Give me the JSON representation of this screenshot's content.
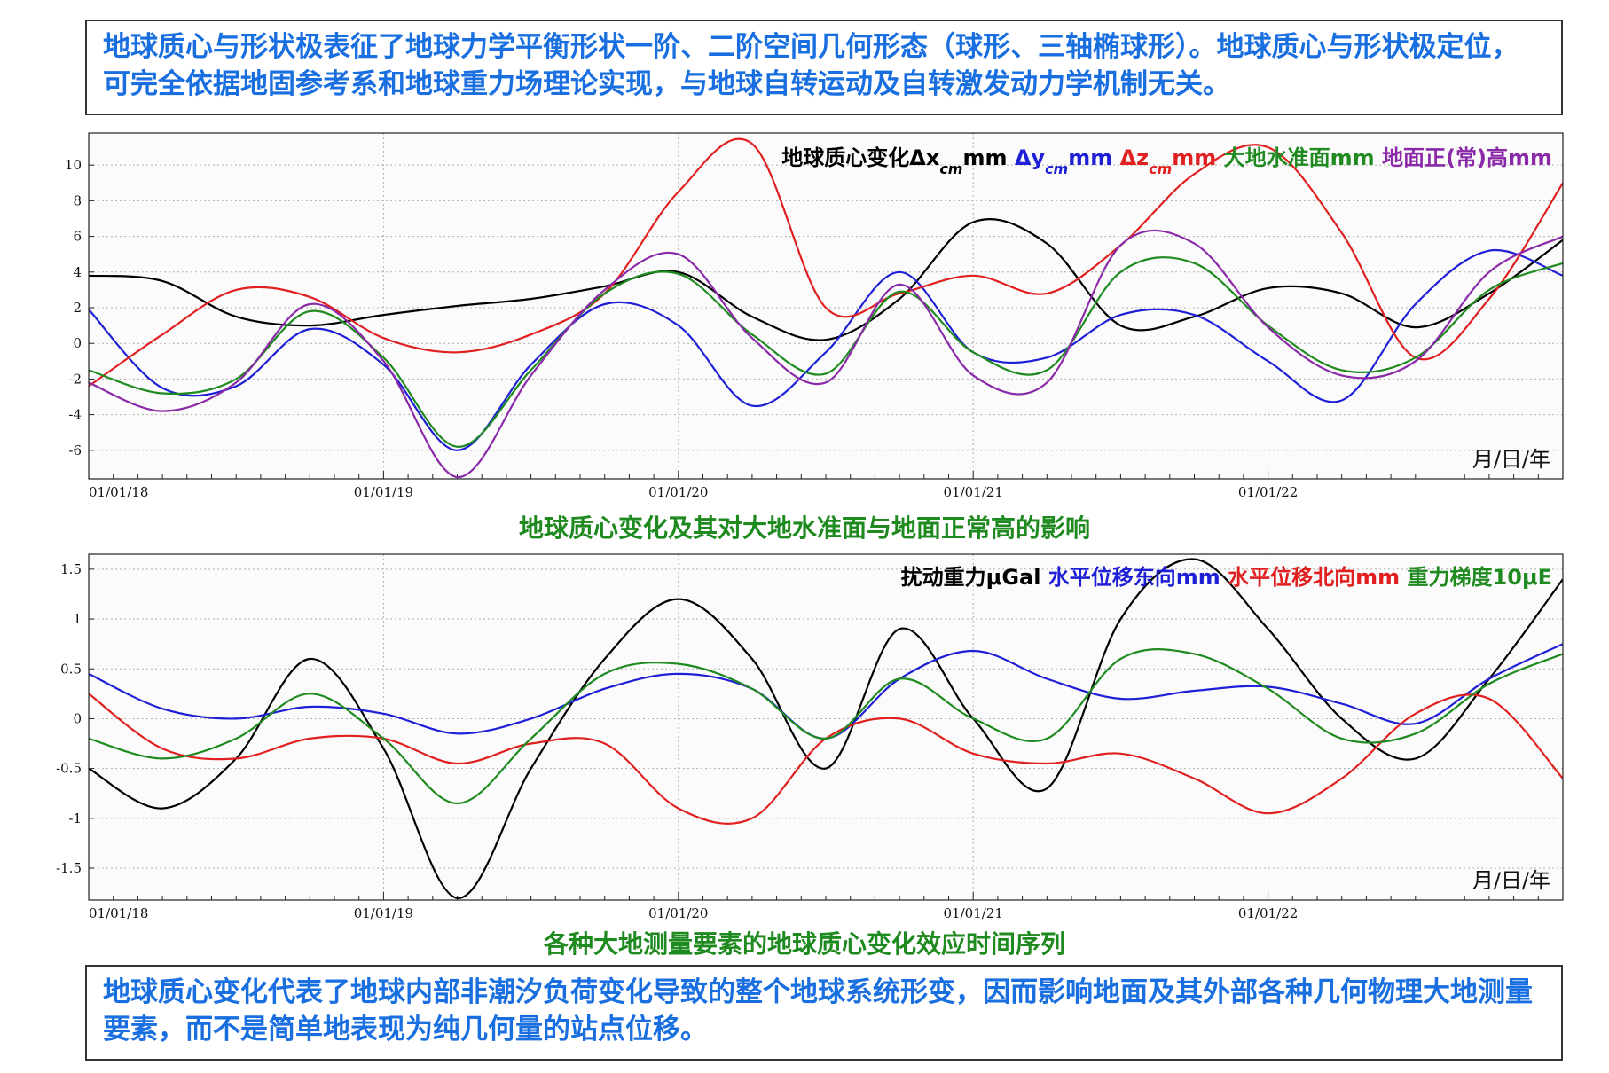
{
  "top_note": "地球质心与形状极表征了地球力学平衡形状一阶、二阶空间几何形态（球形、三轴椭球形）。地球质心与形状极定位，可完全依据地固参考系和地球重力场理论实现，与地球自转运动及自转激发动力学机制无关。",
  "bottom_note": "地球质心变化代表了地球内部非潮汐负荷变化导致的整个地球系统形变，因而影响地面及其外部各种几何物理大地测量要素，而不是简单地表现为纯几何量的站点位移。",
  "colors": {
    "black": "#000000",
    "blue": "#1f1fd6",
    "red": "#e02020",
    "green": "#1f8a1f",
    "purple": "#8a2aa8",
    "textblue": "#1a6fe0"
  },
  "chart_data": [
    {
      "type": "line",
      "title": "地球质心变化及其对大地水准面与地面正常高的影响",
      "xlabel": "月/日/年",
      "ylabel": "",
      "x_ticks": [
        "01/01/18",
        "01/01/19",
        "01/01/20",
        "01/01/21",
        "01/01/22"
      ],
      "xlim": [
        "01/01/18",
        "12/31/22"
      ],
      "y_ticks": [
        10,
        8,
        6,
        4,
        2,
        0,
        -2,
        -4,
        -6
      ],
      "ylim": [
        -7.6,
        11.8
      ],
      "grid": true,
      "legend_position": "top-right",
      "x": [
        2018.0,
        2018.25,
        2018.5,
        2018.75,
        2019.0,
        2019.25,
        2019.5,
        2019.75,
        2020.0,
        2020.25,
        2020.5,
        2020.75,
        2021.0,
        2021.25,
        2021.5,
        2021.75,
        2022.0,
        2022.25,
        2022.5,
        2022.75,
        2023.0
      ],
      "series": [
        {
          "name": "地球质心变化Δx_cm mm",
          "color": "#000000",
          "values": [
            3.8,
            3.5,
            1.5,
            1.0,
            1.6,
            2.1,
            2.5,
            3.2,
            4.0,
            1.5,
            0.2,
            2.5,
            6.8,
            5.6,
            1.0,
            1.5,
            3.1,
            2.8,
            0.9,
            2.8,
            5.8
          ]
        },
        {
          "name": "Δy_cm mm",
          "color": "#1f1fd6",
          "values": [
            1.9,
            -2.5,
            -2.4,
            0.8,
            -1.2,
            -6.0,
            -1.2,
            2.2,
            1.0,
            -3.5,
            -0.5,
            4.0,
            -0.5,
            -0.8,
            1.6,
            1.6,
            -1.0,
            -3.2,
            2.2,
            5.2,
            3.8
          ]
        },
        {
          "name": "Δz_cm mm",
          "color": "#e02020",
          "values": [
            -2.4,
            0.5,
            3.0,
            2.6,
            0.3,
            -0.5,
            0.5,
            2.8,
            8.5,
            11.2,
            2.0,
            2.8,
            3.8,
            2.8,
            5.5,
            9.5,
            11.0,
            6.2,
            -0.8,
            2.5,
            9.0
          ]
        },
        {
          "name": "大地水准面mm",
          "color": "#1f8a1f",
          "values": [
            -1.5,
            -2.8,
            -2.0,
            1.8,
            -0.8,
            -5.8,
            -1.5,
            2.8,
            3.9,
            0.5,
            -1.7,
            2.9,
            -0.5,
            -1.5,
            4.0,
            4.5,
            1.0,
            -1.5,
            -0.8,
            3.0,
            4.5
          ]
        },
        {
          "name": "地面正(常)高mm",
          "color": "#8a2aa8",
          "values": [
            -2.2,
            -3.8,
            -2.2,
            2.2,
            -1.0,
            -7.5,
            -1.8,
            3.0,
            5.0,
            0.3,
            -2.2,
            3.3,
            -1.8,
            -2.2,
            5.5,
            5.6,
            0.9,
            -1.8,
            -1.0,
            4.0,
            6.0
          ]
        }
      ]
    },
    {
      "type": "line",
      "title": "各种大地测量要素的地球质心变化效应时间序列",
      "xlabel": "月/日/年",
      "ylabel": "",
      "x_ticks": [
        "01/01/18",
        "01/01/19",
        "01/01/20",
        "01/01/21",
        "01/01/22"
      ],
      "xlim": [
        "01/01/18",
        "12/31/22"
      ],
      "y_ticks": [
        1.5,
        1,
        0.5,
        0,
        -0.5,
        -1,
        -1.5
      ],
      "ylim": [
        -1.82,
        1.65
      ],
      "grid": true,
      "legend_position": "top-right",
      "x": [
        2018.0,
        2018.25,
        2018.5,
        2018.75,
        2019.0,
        2019.25,
        2019.5,
        2019.75,
        2020.0,
        2020.25,
        2020.5,
        2020.75,
        2021.0,
        2021.25,
        2021.5,
        2021.75,
        2022.0,
        2022.25,
        2022.5,
        2022.75,
        2023.0
      ],
      "series": [
        {
          "name": "扰动重力μGal",
          "color": "#000000",
          "values": [
            -0.5,
            -0.9,
            -0.4,
            0.6,
            -0.3,
            -1.8,
            -0.5,
            0.6,
            1.2,
            0.6,
            -0.5,
            0.9,
            0.0,
            -0.7,
            1.0,
            1.6,
            0.9,
            0.0,
            -0.4,
            0.4,
            1.4
          ]
        },
        {
          "name": "水平位移东向mm",
          "color": "#1f1fd6",
          "values": [
            0.45,
            0.1,
            0.0,
            0.12,
            0.05,
            -0.15,
            0.0,
            0.3,
            0.45,
            0.3,
            -0.2,
            0.4,
            0.68,
            0.4,
            0.2,
            0.28,
            0.32,
            0.15,
            -0.05,
            0.4,
            0.75
          ]
        },
        {
          "name": "水平位移北向mm",
          "color": "#e02020",
          "values": [
            0.25,
            -0.3,
            -0.4,
            -0.2,
            -0.2,
            -0.45,
            -0.25,
            -0.25,
            -0.9,
            -1.0,
            -0.2,
            0.0,
            -0.35,
            -0.45,
            -0.35,
            -0.6,
            -0.95,
            -0.6,
            0.05,
            0.2,
            -0.6
          ]
        },
        {
          "name": "重力梯度10μE",
          "color": "#1f8a1f",
          "values": [
            -0.2,
            -0.4,
            -0.2,
            0.25,
            -0.2,
            -0.85,
            -0.2,
            0.45,
            0.55,
            0.3,
            -0.2,
            0.4,
            0.0,
            -0.2,
            0.6,
            0.65,
            0.3,
            -0.2,
            -0.15,
            0.35,
            0.65
          ]
        }
      ]
    }
  ],
  "legend1": {
    "prefix": "地球质心变化",
    "items": [
      {
        "base": "Δx",
        "sub": "cm",
        "unit": "mm",
        "color": "#000000"
      },
      {
        "base": "Δy",
        "sub": "cm",
        "unit": "mm",
        "color": "#1f1fd6"
      },
      {
        "base": "Δz",
        "sub": "cm",
        "unit": "mm",
        "color": "#e02020"
      },
      {
        "base": "大地水准面",
        "sub": "",
        "unit": "mm",
        "color": "#1f8a1f"
      },
      {
        "base": "地面正(常)高",
        "sub": "",
        "unit": "mm",
        "color": "#8a2aa8"
      }
    ]
  },
  "legend2": [
    {
      "text": "扰动重力μGal",
      "color": "#000000"
    },
    {
      "text": "水平位移东向mm",
      "color": "#1f1fd6"
    },
    {
      "text": "水平位移北向mm",
      "color": "#e02020"
    },
    {
      "text": "重力梯度10μE",
      "color": "#1f8a1f"
    }
  ]
}
